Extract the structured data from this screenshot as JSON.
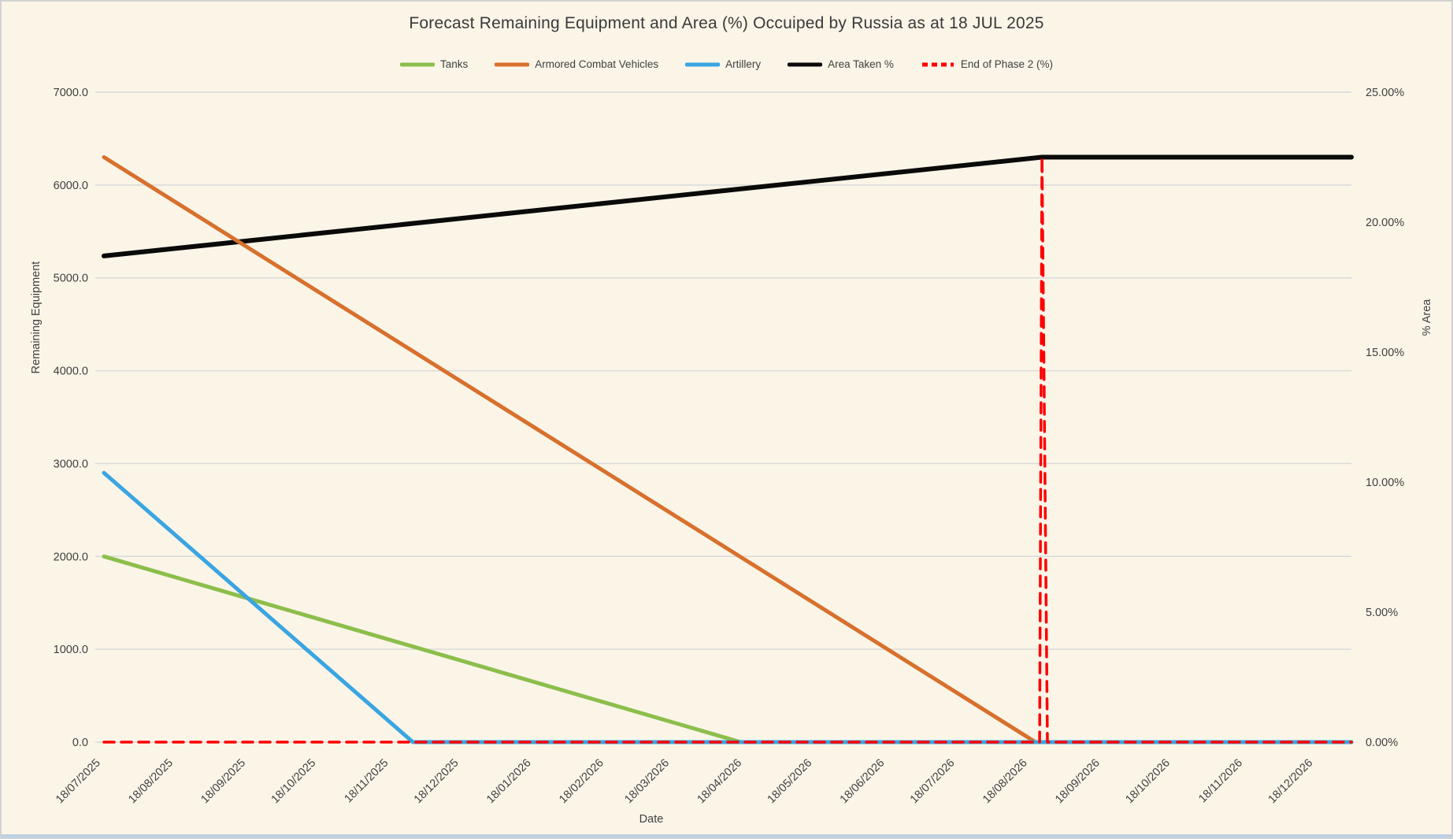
{
  "window": {
    "background": "#FBF5E8",
    "border_color": "#D2D2D2",
    "bottom_edge_color": "#BCCFE4"
  },
  "chart_data": {
    "type": "line",
    "title": "Forecast Remaining Equipment and Area (%) Occuiped by Russia as at 18 JUL 2025",
    "xlabel": "Date",
    "ylabel_left": "Remaining Equipment",
    "ylabel_right": "% Area",
    "grid": "horizontal",
    "legend_position": "top",
    "colors": {
      "tanks": "#8CBE4B",
      "acv": "#D8702D",
      "artillery": "#3AA5E1",
      "area_taken": "#0A0A0A",
      "end_phase2": "#FE0000",
      "gridline": "#DADADA",
      "tick_text": "#404040",
      "title_text": "#3A3A3A"
    },
    "x_axis": {
      "tick_labels": [
        "18/07/2025",
        "18/08/2025",
        "18/09/2025",
        "18/10/2025",
        "18/11/2025",
        "18/12/2025",
        "18/01/2026",
        "18/02/2026",
        "18/03/2026",
        "18/04/2026",
        "18/05/2026",
        "18/06/2026",
        "18/07/2026",
        "18/08/2026",
        "18/09/2026",
        "18/10/2026",
        "18/11/2026",
        "18/12/2026"
      ],
      "tick_days": [
        0,
        31,
        62,
        92,
        123,
        153,
        184,
        215,
        243,
        274,
        304,
        335,
        365,
        396,
        427,
        457,
        488,
        518
      ],
      "range_days": [
        0,
        533
      ]
    },
    "y_left": {
      "min": 0,
      "max": 7000,
      "step": 1000,
      "tick_labels": [
        "0.0",
        "1000.0",
        "2000.0",
        "3000.0",
        "4000.0",
        "5000.0",
        "6000.0",
        "7000.0"
      ],
      "tick_values": [
        0,
        1000,
        2000,
        3000,
        4000,
        5000,
        6000,
        7000
      ]
    },
    "y_right": {
      "min": 0,
      "max": 25,
      "step": 5,
      "tick_labels": [
        "0.00%",
        "5.00%",
        "10.00%",
        "15.00%",
        "20.00%",
        "25.00%"
      ],
      "tick_values": [
        0,
        5,
        10,
        15,
        20,
        25
      ]
    },
    "series": [
      {
        "name": "Area Taken %",
        "axis": "right",
        "style": "solid",
        "color_key": "area_taken",
        "width": 6,
        "points": [
          [
            0,
            18.7
          ],
          [
            400.8,
            22.5
          ],
          [
            533,
            22.5
          ]
        ]
      },
      {
        "name": "Tanks",
        "axis": "left",
        "style": "solid",
        "color_key": "tanks",
        "width": 5,
        "points": [
          [
            0,
            2000
          ],
          [
            272,
            0
          ],
          [
            533,
            0
          ]
        ]
      },
      {
        "name": "Armored Combat Vehicles",
        "axis": "left",
        "style": "solid",
        "color_key": "acv",
        "width": 5,
        "points": [
          [
            0,
            6300
          ],
          [
            398,
            0
          ],
          [
            533,
            0
          ]
        ]
      },
      {
        "name": "Artillery",
        "axis": "left",
        "style": "solid",
        "color_key": "artillery",
        "width": 5,
        "points": [
          [
            0,
            2900
          ],
          [
            132,
            0
          ],
          [
            533,
            0
          ]
        ]
      },
      {
        "name": "End of Phase 2 (%)",
        "axis": "right",
        "style": "dashed",
        "color_key": "end_phase2",
        "width": 3.5,
        "points": [
          [
            0,
            0
          ],
          [
            399.8,
            0
          ],
          [
            400.8,
            22.5
          ],
          [
            403.1,
            0
          ],
          [
            533,
            0
          ]
        ]
      }
    ],
    "legend": [
      {
        "label": "Tanks",
        "color_key": "tanks",
        "style": "solid"
      },
      {
        "label": "Armored Combat Vehicles",
        "color_key": "acv",
        "style": "solid"
      },
      {
        "label": "Artillery",
        "color_key": "artillery",
        "style": "solid"
      },
      {
        "label": "Area Taken %",
        "color_key": "area_taken",
        "style": "solid"
      },
      {
        "label": "End of Phase 2 (%)",
        "color_key": "end_phase2",
        "style": "dashed"
      }
    ]
  }
}
